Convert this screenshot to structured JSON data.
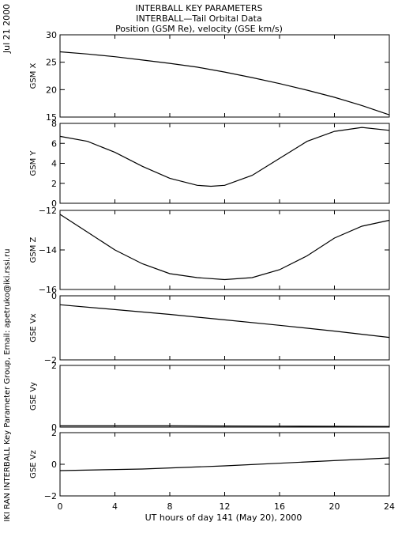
{
  "header": {
    "line1": "INTERBALL KEY PARAMETERS",
    "line2": "INTERBALL—Tail Orbital Data",
    "line3": "Position (GSM Re), velocity (GSE km/s)"
  },
  "side": {
    "date": "Jul 21 2000",
    "credit": "IKI RAN INTERBALL Key Parameter Group, Email: apetruko@iki.rssi.ru"
  },
  "colors": {
    "line": "#000000",
    "background": "#ffffff"
  },
  "chart_data": [
    {
      "type": "line",
      "ylabel": "GSM X",
      "ylim": [
        15,
        30
      ],
      "yticks": [
        15,
        20,
        25,
        30
      ],
      "x": [
        0,
        2,
        4,
        6,
        8,
        10,
        12,
        14,
        16,
        18,
        20,
        22,
        24
      ],
      "values": [
        26.9,
        26.5,
        26.0,
        25.4,
        24.8,
        24.1,
        23.2,
        22.2,
        21.1,
        19.9,
        18.6,
        17.1,
        15.4
      ]
    },
    {
      "type": "line",
      "ylabel": "GSM Y",
      "ylim": [
        0,
        8
      ],
      "yticks": [
        0,
        2,
        4,
        6,
        8
      ],
      "x": [
        0,
        2,
        4,
        6,
        8,
        10,
        11,
        12,
        14,
        16,
        18,
        20,
        22,
        24
      ],
      "values": [
        6.7,
        6.2,
        5.1,
        3.7,
        2.5,
        1.8,
        1.7,
        1.8,
        2.8,
        4.5,
        6.2,
        7.2,
        7.6,
        7.3
      ]
    },
    {
      "type": "line",
      "ylabel": "GSM Z",
      "ylim": [
        -16,
        -12
      ],
      "yticks": [
        -16,
        -14,
        -12
      ],
      "x": [
        0,
        2,
        4,
        6,
        8,
        10,
        12,
        14,
        16,
        18,
        20,
        22,
        24
      ],
      "values": [
        -12.2,
        -13.1,
        -14.0,
        -14.7,
        -15.2,
        -15.4,
        -15.5,
        -15.4,
        -15.0,
        -14.3,
        -13.4,
        -12.8,
        -12.5
      ]
    },
    {
      "type": "line",
      "ylabel": "GSE Vx",
      "ylim": [
        -2,
        0
      ],
      "yticks": [
        -2,
        0
      ],
      "x": [
        0,
        4,
        8,
        12,
        16,
        20,
        24
      ],
      "values": [
        -0.28,
        -0.43,
        -0.58,
        -0.75,
        -0.92,
        -1.1,
        -1.3
      ]
    },
    {
      "type": "line",
      "ylabel": "GSE Vy",
      "ylim": [
        0,
        2
      ],
      "yticks": [
        0,
        2
      ],
      "x": [
        0,
        8,
        16,
        24
      ],
      "values": [
        0.04,
        0.04,
        0.03,
        0.02
      ]
    },
    {
      "type": "line",
      "ylabel": "GSE Vz",
      "ylim": [
        -2,
        2
      ],
      "yticks": [
        -2,
        0,
        2
      ],
      "x": [
        0,
        6,
        12,
        18,
        24
      ],
      "values": [
        -0.4,
        -0.3,
        -0.1,
        0.15,
        0.4
      ]
    }
  ],
  "xaxis": {
    "label": "UT hours of day 141 (May 20), 2000",
    "ticks": [
      0,
      4,
      8,
      12,
      16,
      20,
      24
    ],
    "xlim": [
      0,
      24
    ]
  }
}
